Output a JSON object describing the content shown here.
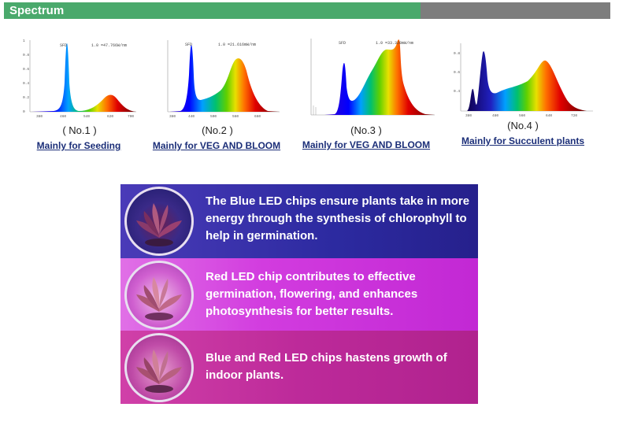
{
  "header": {
    "title": "Spectrum"
  },
  "spectra": [
    {
      "number": "( No.1 )",
      "description": "Mainly for Seeding",
      "sfd_label": "SFD",
      "readout": "1.0 =47.766W/nm"
    },
    {
      "number": "(No.2 )",
      "description": "Mainly for VEG AND BLOOM",
      "sfd_label": "SFD",
      "readout": "1.0 =21.616mW/nm"
    },
    {
      "number": "(No.3 )",
      "description": "Mainly for VEG AND BLOOM",
      "sfd_label": "SFD",
      "readout": "1.0 =33.328mW/nm"
    },
    {
      "number": "(No.4 )",
      "description": "Mainly for Succulent plants",
      "sfd_label": "",
      "readout": ""
    }
  ],
  "bands": [
    {
      "text": "The Blue LED chips ensure plants take in more energy through the synthesis of chlorophyll to help in germination.",
      "color": "#3a2fa8"
    },
    {
      "text": "Red LED chip contributes to effective germination, flowering, and enhances photosynthesis for better results.",
      "color": "#d23cdf"
    },
    {
      "text": "Blue and Red LED chips hastens growth of indoor plants.",
      "color": "#bd2a9a"
    }
  ],
  "colors": {
    "header_green": "#4aa96c",
    "header_gray": "#7d7d7d",
    "link_blue": "#1b2e78"
  }
}
